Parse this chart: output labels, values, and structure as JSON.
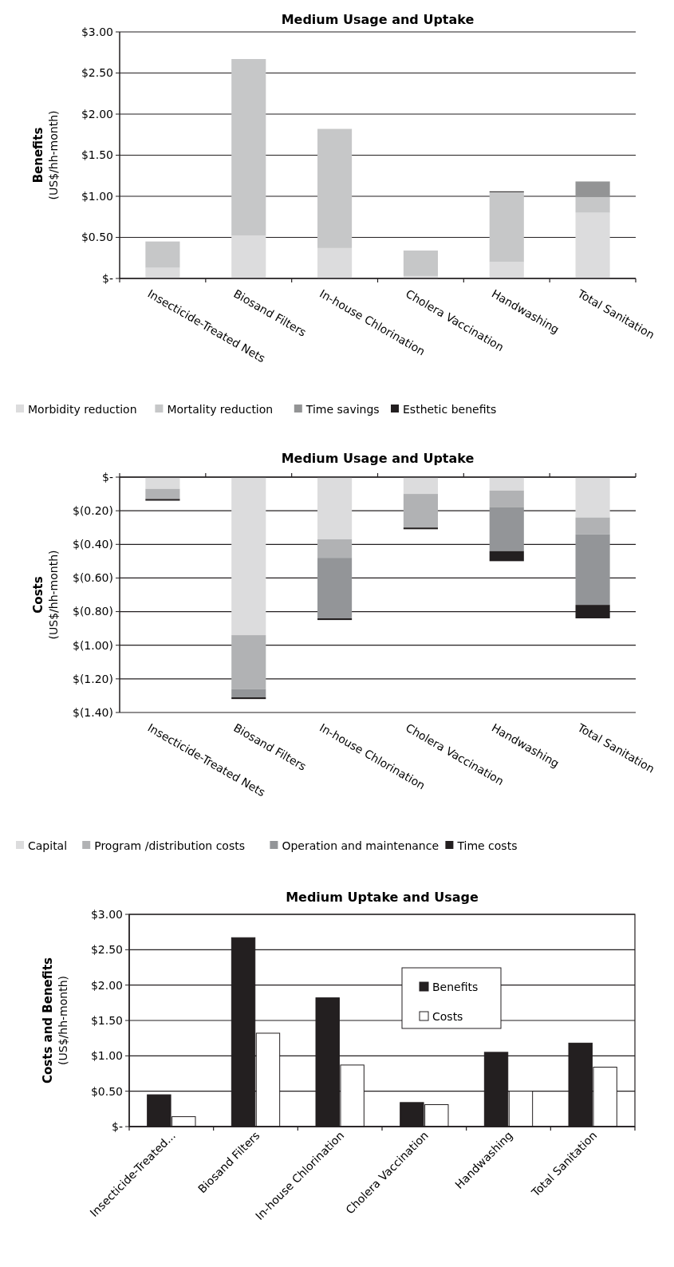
{
  "chart_data": [
    {
      "type": "bar",
      "title": "Medium Usage and Uptake",
      "ylabel": "Benefits\n(US$/hh-month)",
      "stacked": true,
      "categories": [
        "Insecticide-Treated Nets",
        "Biosand Filters",
        "In-house Chlorination",
        "Cholera Vaccination",
        "Handwashing",
        "Total Sanitation"
      ],
      "series": [
        {
          "name": "Morbidity reduction",
          "color": "#dcdcdd",
          "values": [
            0.13,
            0.52,
            0.37,
            0.03,
            0.2,
            0.8
          ]
        },
        {
          "name": "Mortality reduction",
          "color": "#c6c7c8",
          "values": [
            0.32,
            2.15,
            1.45,
            0.31,
            0.85,
            0.19
          ]
        },
        {
          "name": "Time savings",
          "color": "#939495",
          "values": [
            0,
            0,
            0,
            0,
            0,
            0.19
          ]
        },
        {
          "name": "Esthetic benefits",
          "color": "#231f20",
          "values": [
            0,
            0,
            0,
            0,
            0.01,
            0
          ]
        }
      ],
      "ylim": [
        0,
        3
      ],
      "yticks": [
        {
          "value": 0,
          "label": "$-"
        },
        {
          "value": 0.5,
          "label": "$0.50"
        },
        {
          "value": 1,
          "label": "$1.00"
        },
        {
          "value": 1.5,
          "label": "$1.50"
        },
        {
          "value": 2,
          "label": "$2.00"
        },
        {
          "value": 2.5,
          "label": "$2.50"
        },
        {
          "value": 3,
          "label": "$3.00"
        }
      ],
      "grid": "y",
      "legend": "bottom"
    },
    {
      "type": "bar",
      "title": "Medium Usage and Uptake",
      "ylabel": "Costs\n(US$/hh-month)",
      "stacked": true,
      "categories": [
        "Insecticide-Treated Nets",
        "Biosand Filters",
        "In-house Chlorination",
        "Cholera Vaccination",
        "Handwashing",
        "Total Sanitation"
      ],
      "series": [
        {
          "name": "Capital",
          "color": "#dcdcdd",
          "values": [
            -0.07,
            -0.94,
            -0.37,
            -0.1,
            -0.08,
            -0.24
          ]
        },
        {
          "name": "Program /distribution costs",
          "color": "#b1b2b4",
          "values": [
            -0.06,
            -0.32,
            -0.11,
            -0.2,
            -0.1,
            -0.1
          ]
        },
        {
          "name": "Operation and maintenance",
          "color": "#939598",
          "values": [
            0,
            -0.05,
            -0.36,
            0,
            -0.26,
            -0.42
          ]
        },
        {
          "name": "Time costs",
          "color": "#231f20",
          "values": [
            -0.01,
            -0.01,
            -0.01,
            -0.01,
            -0.06,
            -0.08
          ]
        }
      ],
      "ylim": [
        -1.4,
        0
      ],
      "yticks": [
        {
          "value": 0,
          "label": "$-"
        },
        {
          "value": -0.2,
          "label": "$(0.20)"
        },
        {
          "value": -0.4,
          "label": "$(0.40)"
        },
        {
          "value": -0.6,
          "label": "$(0.60)"
        },
        {
          "value": -0.8,
          "label": "$(0.80)"
        },
        {
          "value": -1,
          "label": "$(1.00)"
        },
        {
          "value": -1.2,
          "label": "$(1.20)"
        },
        {
          "value": -1.4,
          "label": "$(1.40)"
        }
      ],
      "grid": "y",
      "legend": "bottom"
    },
    {
      "type": "bar",
      "title": "Medium Uptake and Usage",
      "ylabel": "Costs and Benefits\n(US$/hh-month)",
      "categories": [
        "Insecticide-Treated...",
        "Biosand Filters",
        "In-house Chlorination",
        "Cholera Vaccination",
        "Handwashing",
        "Total Sanitation"
      ],
      "series": [
        {
          "name": "Benefits",
          "color": "#231f20",
          "values": [
            0.45,
            2.67,
            1.82,
            0.34,
            1.05,
            1.18
          ]
        },
        {
          "name": "Costs",
          "color": "#ffffff",
          "values": [
            0.14,
            1.32,
            0.87,
            0.31,
            0.5,
            0.84
          ]
        }
      ],
      "ylim": [
        0,
        3
      ],
      "yticks": [
        {
          "value": 0,
          "label": "$-"
        },
        {
          "value": 0.5,
          "label": "$0.50"
        },
        {
          "value": 1,
          "label": "$1.00"
        },
        {
          "value": 1.5,
          "label": "$1.50"
        },
        {
          "value": 2,
          "label": "$2.00"
        },
        {
          "value": 2.5,
          "label": "$2.50"
        },
        {
          "value": 3,
          "label": "$3.00"
        }
      ],
      "grid": "y",
      "legend": "top"
    }
  ]
}
